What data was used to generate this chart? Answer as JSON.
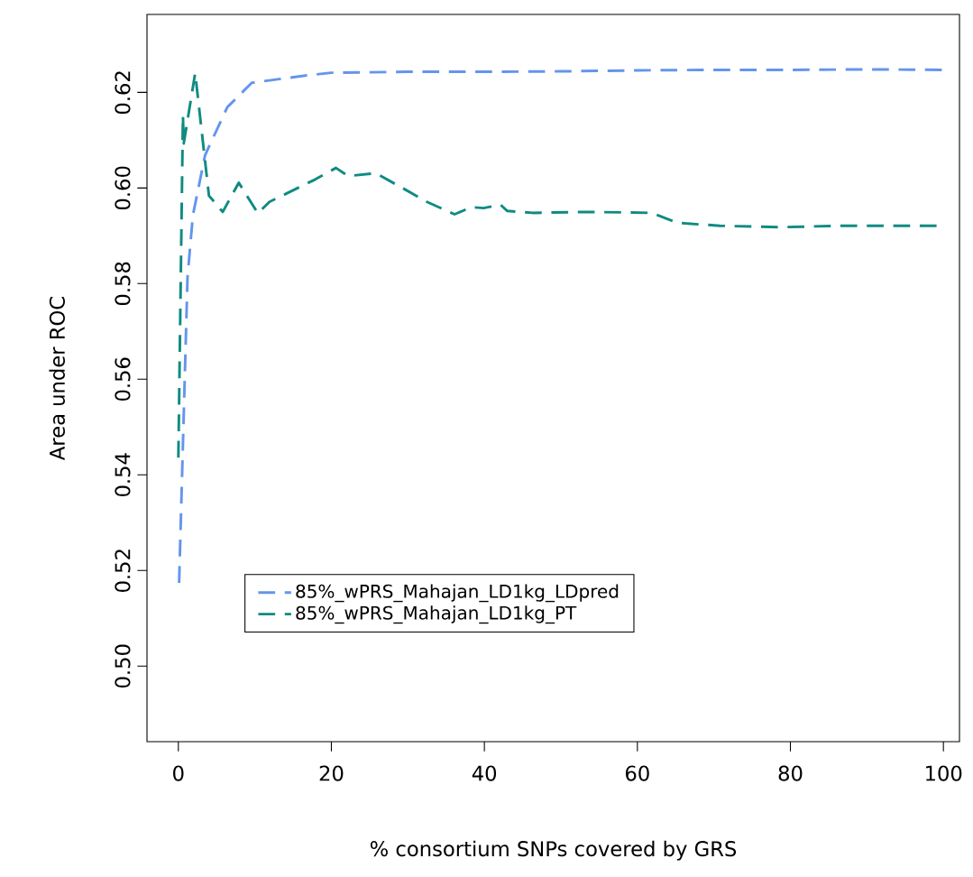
{
  "chart_data": {
    "type": "line",
    "xlabel": "% consortium SNPs covered by GRS",
    "ylabel": "Area under ROC",
    "xlim": [
      -4.1,
      102.1
    ],
    "ylim": [
      0.4842,
      0.6363
    ],
    "xticks": [
      0,
      20,
      40,
      60,
      80,
      100
    ],
    "yticks": [
      {
        "value": 0.5,
        "label": "0.50"
      },
      0.52,
      0.54,
      0.56,
      0.58,
      {
        "value": 0.6,
        "label": "0.60"
      },
      0.62
    ],
    "legend": "bottom left",
    "line_style": "dashed",
    "marker": "none",
    "grid": false,
    "series": [
      {
        "name": "85%_wPRS_Mahajan_LD1kg_LDpred",
        "color": "#6495ed",
        "x": [
          0.1,
          1.2,
          1.9,
          3.5,
          6.4,
          9.6,
          17,
          20,
          30,
          40,
          50,
          60,
          70,
          80,
          90,
          100
        ],
        "values": [
          0.5174,
          0.5814,
          0.5943,
          0.6069,
          0.6169,
          0.622,
          0.6236,
          0.6241,
          0.6243,
          0.6243,
          0.6244,
          0.6246,
          0.6247,
          0.6247,
          0.6248,
          0.6247
        ]
      },
      {
        "name": "85%_wPRS_Mahajan_LD1kg_PT",
        "color": "#0f8b82",
        "x": [
          0,
          0.6,
          0.7,
          2.2,
          4,
          5.8,
          7.9,
          10.4,
          11.9,
          17.9,
          20.6,
          22.2,
          25.8,
          29.4,
          32.5,
          36.1,
          38.3,
          39.9,
          42.1,
          43,
          46.3,
          53.8,
          61.8,
          65.3,
          70.8,
          78.8,
          86.3,
          99.3
        ],
        "values": [
          0.5436,
          0.6152,
          0.6093,
          0.624,
          0.5984,
          0.595,
          0.6011,
          0.5947,
          0.5971,
          0.6018,
          0.6042,
          0.6025,
          0.6031,
          0.5999,
          0.5971,
          0.5945,
          0.596,
          0.5958,
          0.5965,
          0.5952,
          0.5948,
          0.595,
          0.5948,
          0.5927,
          0.5921,
          0.5918,
          0.5921,
          0.5921
        ]
      }
    ]
  }
}
